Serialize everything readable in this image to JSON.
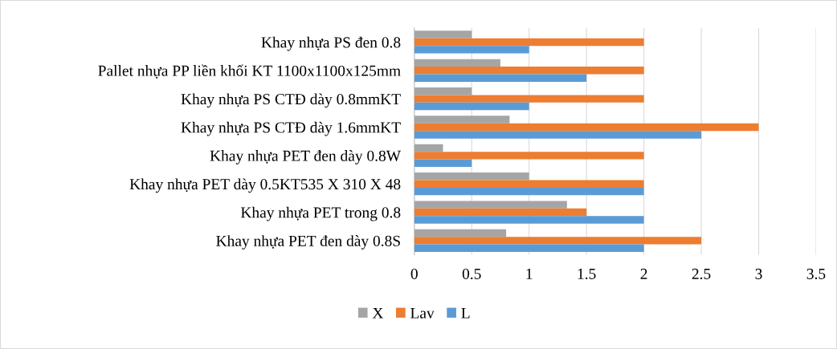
{
  "chart_data": {
    "type": "bar",
    "orientation": "horizontal",
    "categories": [
      "Khay nhựa PS đen 0.8",
      "Pallet nhựa PP liền khối KT 1100x1100x125mm",
      "Khay nhựa PS CTĐ dày 0.8mmKT",
      "Khay nhựa PS CTĐ dày 1.6mmKT",
      "Khay nhựa PET đen dày 0.8W",
      "Khay nhựa PET dày 0.5KT535 X 310 X 48",
      "Khay nhựa PET trong 0.8",
      "Khay nhựa PET đen dày 0.8S"
    ],
    "series": [
      {
        "name": "X",
        "color": "#a5a5a5",
        "values": [
          0.5,
          0.75,
          0.5,
          0.83,
          0.25,
          1,
          1.33,
          0.8
        ]
      },
      {
        "name": "Lav",
        "color": "#ed7d31",
        "values": [
          2,
          2,
          2,
          3,
          2,
          2,
          1.5,
          2.5
        ]
      },
      {
        "name": "L",
        "color": "#5b9bd5",
        "values": [
          1,
          1.5,
          1,
          2.5,
          0.5,
          2,
          2,
          2
        ]
      }
    ],
    "xlim": [
      0,
      3.5
    ],
    "xticks": [
      0,
      0.5,
      1,
      1.5,
      2,
      2.5,
      3,
      3.5
    ],
    "grid": "x",
    "legend": "bottom"
  }
}
